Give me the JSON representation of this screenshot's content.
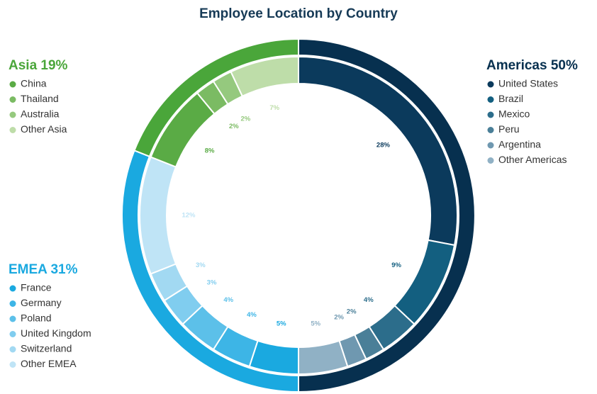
{
  "chart_data": {
    "type": "nested-donut",
    "title": "Employee Location by Country",
    "groups": [
      {
        "name": "Americas",
        "value": 50,
        "value_label": "Americas 50%",
        "color": "#07304f",
        "categories": [
          "United States",
          "Brazil",
          "Mexico",
          "Peru",
          "Argentina",
          "Other Americas"
        ],
        "values": [
          28,
          9,
          4,
          2,
          2,
          5
        ],
        "value_labels": [
          "28%",
          "9%",
          "4%",
          "2%",
          "2%",
          "5%"
        ],
        "colors": [
          "#0b3a5c",
          "#135f80",
          "#2c6d8b",
          "#4a7f98",
          "#6f98b0",
          "#90b1c5"
        ]
      },
      {
        "name": "EMEA",
        "value": 31,
        "value_label": "EMEA 31%",
        "color": "#1aa9e0",
        "categories": [
          "France",
          "Germany",
          "Poland",
          "United Kingdom",
          "Switzerland",
          "Other EMEA"
        ],
        "values": [
          5,
          4,
          4,
          3,
          3,
          12
        ],
        "value_labels": [
          "5%",
          "4%",
          "4%",
          "3%",
          "3%",
          "12%"
        ],
        "colors": [
          "#1aa9e0",
          "#3db5e6",
          "#5cc0e9",
          "#80cdef",
          "#a2d9f2",
          "#bfe4f6"
        ]
      },
      {
        "name": "Asia",
        "value": 19,
        "value_label": "Asia 19%",
        "color": "#4aa63a",
        "categories": [
          "China",
          "Thailand",
          "Australia",
          "Other Asia"
        ],
        "values": [
          8,
          2,
          2,
          7
        ],
        "value_labels": [
          "8%",
          "2%",
          "2%",
          "7%"
        ],
        "colors": [
          "#5aab45",
          "#7bbb63",
          "#95c97e",
          "#bedda9"
        ]
      }
    ]
  }
}
